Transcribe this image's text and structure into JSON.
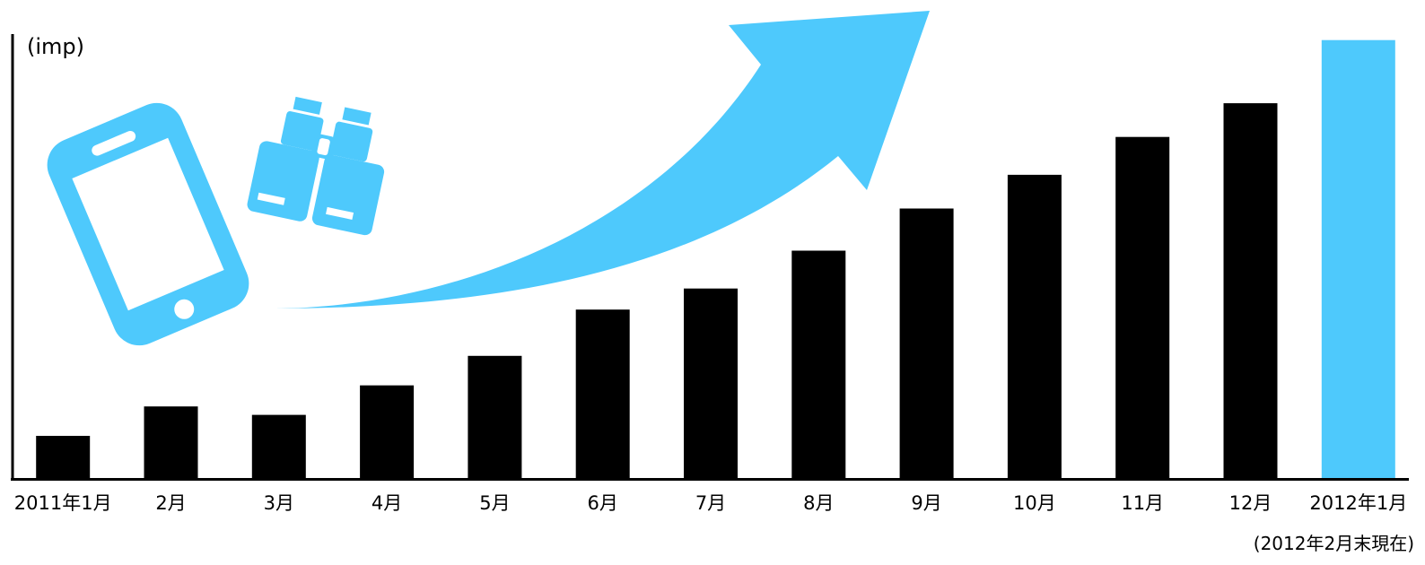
{
  "chart_data": {
    "type": "bar",
    "ylabel": "(imp)",
    "categories": [
      "2011年1月",
      "2月",
      "3月",
      "4月",
      "5月",
      "6月",
      "7月",
      "8月",
      "9月",
      "10月",
      "11月",
      "12月",
      "2012年1月"
    ],
    "values": [
      10,
      17,
      15,
      22,
      29,
      40,
      45,
      54,
      64,
      72,
      81,
      89,
      104
    ],
    "ylim": [
      0,
      105
    ],
    "grid": false,
    "highlight_index": 12,
    "colors": {
      "bar": "#000000",
      "highlight": "#4ec9fc",
      "accent": "#4ec9fc"
    }
  },
  "note": "(2012年2月末現在)",
  "icons": [
    "smartphone-icon",
    "binoculars-icon",
    "growth-arrow-icon"
  ]
}
